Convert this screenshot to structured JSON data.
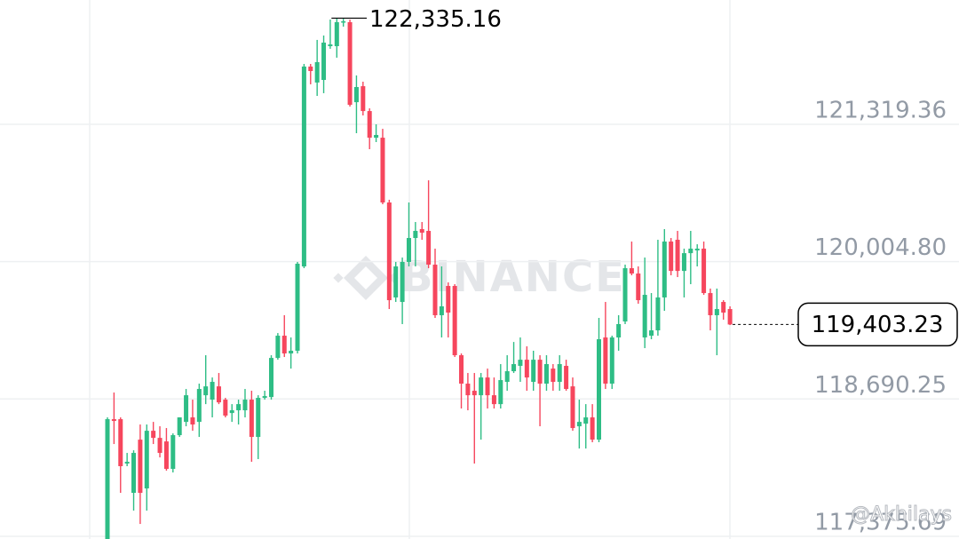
{
  "chart_data": {
    "type": "candlestick",
    "up_color": "#2ebd85",
    "down_color": "#f6465d",
    "grid": true,
    "ylim": [
      117350,
      122509
    ],
    "yticks": [
      {
        "value": 121319.36,
        "label": "121,319.36"
      },
      {
        "value": 120004.8,
        "label": "120,004.80"
      },
      {
        "value": 118690.25,
        "label": "118,690.25"
      },
      {
        "value": 117375.69,
        "label": "117,375.69"
      }
    ],
    "open": [
      117350,
      118497,
      118497,
      118072,
      117792,
      118301,
      117834,
      118386,
      118318,
      118284,
      118021,
      118344,
      118471,
      118514,
      118471,
      118726,
      118684,
      118811,
      118684,
      118556,
      118582,
      118582,
      118684,
      118327,
      118701,
      118709,
      119083,
      119296,
      119126,
      119152,
      119959,
      121872,
      121719,
      121744,
      122067,
      122067,
      122297,
      122297,
      121531,
      121684,
      121446,
      121191,
      121191,
      120571,
      119662,
      119619,
      120002,
      120231,
      120316,
      120299,
      119976,
      119492,
      119772,
      119772,
      119109,
      118837,
      118769,
      118726,
      118896,
      118726,
      118641,
      118854,
      118956,
      119007,
      119066,
      118854,
      119066,
      118837,
      118981,
      118854,
      119007,
      118811,
      118429,
      118454,
      118514,
      118301,
      119279,
      118837,
      119279,
      119432,
      119942,
      119891,
      119279,
      119296,
      119347,
      119662,
      120197,
      120214,
      119916,
      120086,
      120112,
      120129,
      119704,
      119492,
      119619,
      119551
    ],
    "high": [
      118514,
      118752,
      118514,
      118174,
      118199,
      118446,
      118446,
      118471,
      118429,
      118412,
      118361,
      118514,
      118786,
      118684,
      118837,
      119109,
      118896,
      118939,
      118701,
      118641,
      118684,
      118786,
      118769,
      118726,
      118769,
      119109,
      119321,
      119492,
      119279,
      120002,
      121897,
      121897,
      122127,
      122169,
      122322,
      122335.16,
      122330,
      122322,
      121787,
      121727,
      121472,
      121319,
      121276,
      120597,
      120002,
      120044,
      120571,
      120384,
      120384,
      120783,
      120129,
      119959,
      119806,
      119789,
      119126,
      118939,
      118939,
      118939,
      118981,
      118896,
      119024,
      119109,
      119236,
      119279,
      119194,
      119152,
      119109,
      119109,
      119024,
      119109,
      119066,
      118896,
      118684,
      118641,
      118641,
      119466,
      119619,
      119296,
      119492,
      119976,
      120197,
      119959,
      120044,
      119704,
      120214,
      120316,
      120231,
      120299,
      120129,
      120299,
      120171,
      120197,
      119747,
      119747,
      119636,
      119577
    ],
    "low": [
      117330,
      118259,
      117792,
      118047,
      117622,
      117494,
      117622,
      118259,
      118131,
      118004,
      117987,
      118327,
      118429,
      118386,
      118327,
      118641,
      118514,
      118641,
      118514,
      118471,
      118446,
      118514,
      118089,
      118115,
      118684,
      118684,
      119066,
      119092,
      118981,
      119126,
      119942,
      121702,
      121591,
      121617,
      122042,
      121957,
      122254,
      121489,
      121234,
      121404,
      121081,
      121149,
      120554,
      119551,
      119619,
      119407,
      119959,
      119959,
      120214,
      119942,
      119466,
      119279,
      119279,
      119092,
      118599,
      118582,
      118072,
      118301,
      118599,
      118599,
      118599,
      118769,
      118939,
      118854,
      118769,
      118769,
      118429,
      118769,
      118769,
      118769,
      118769,
      118386,
      118216,
      118216,
      118276,
      118276,
      118786,
      118786,
      119152,
      119407,
      119874,
      119602,
      119177,
      119262,
      119296,
      119534,
      119874,
      119857,
      119662,
      119789,
      119959,
      119687,
      119347,
      119109,
      119449,
      119398
    ],
    "close": [
      118497,
      118480,
      118047,
      118089,
      118174,
      117792,
      118386,
      118318,
      118174,
      118021,
      118344,
      118514,
      118726,
      118446,
      118786,
      118811,
      118854,
      118658,
      118531,
      118582,
      118641,
      118684,
      118327,
      118701,
      118718,
      119083,
      119296,
      119126,
      119152,
      119985,
      121872,
      121829,
      121914,
      122101,
      122084,
      122297,
      122305,
      121506,
      121676,
      121446,
      121191,
      121217,
      120571,
      119636,
      119959,
      120002,
      120231,
      120299,
      120282,
      119976,
      119492,
      119577,
      119517,
      119109,
      118837,
      118726,
      118726,
      118896,
      118726,
      118641,
      118871,
      118956,
      119024,
      119066,
      118896,
      119066,
      118837,
      119024,
      118854,
      119024,
      118786,
      118412,
      118471,
      118514,
      118301,
      119262,
      118837,
      119279,
      119407,
      119942,
      119891,
      119636,
      119687,
      119347,
      119662,
      120197,
      119916,
      119916,
      120086,
      120129,
      120129,
      119704,
      119492,
      119551,
      119517,
      119403.23
    ],
    "high_label": {
      "value": 122335.16,
      "label": "122,335.16"
    },
    "last_price": {
      "value": 119403.23,
      "label": "119,403.23"
    },
    "watermark": "BINANCE",
    "credit": "@Akhilays"
  }
}
